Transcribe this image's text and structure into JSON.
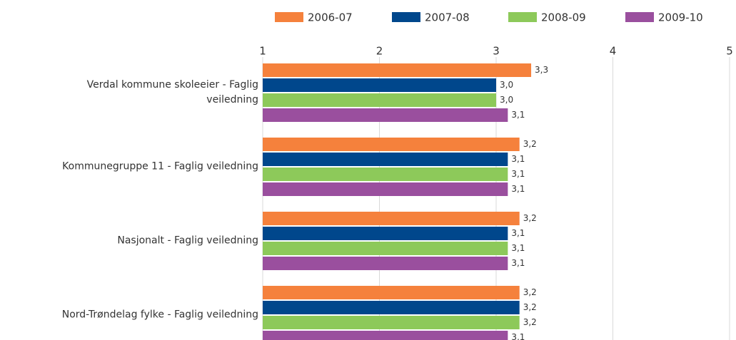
{
  "chart_data": {
    "type": "barh",
    "categories": [
      "Verdal kommune skoleeier - Faglig veiledning",
      "Kommunegruppe 11 - Faglig veiledning",
      "Nasjonalt - Faglig veiledning",
      "Nord-Trøndelag fylke - Faglig veiledning"
    ],
    "series": [
      {
        "name": "2006-07",
        "color": "#f5813c",
        "values": [
          3.3,
          3.2,
          3.2,
          3.2
        ],
        "value_labels": [
          "3,3",
          "3,2",
          "3,2",
          "3,2"
        ]
      },
      {
        "name": "2007-08",
        "color": "#00478c",
        "values": [
          3.0,
          3.1,
          3.1,
          3.2
        ],
        "value_labels": [
          "3,0",
          "3,1",
          "3,1",
          "3,2"
        ]
      },
      {
        "name": "2008-09",
        "color": "#8dc95a",
        "values": [
          3.0,
          3.1,
          3.1,
          3.2
        ],
        "value_labels": [
          "3,0",
          "3,1",
          "3,1",
          "3,2"
        ]
      },
      {
        "name": "2009-10",
        "color": "#9a4f9e",
        "values": [
          3.1,
          3.1,
          3.1,
          3.1
        ],
        "value_labels": [
          "3,1",
          "3,1",
          "3,1",
          "3,1"
        ]
      }
    ],
    "xlim": [
      1,
      5
    ],
    "xticks": [
      1,
      2,
      3,
      4,
      5
    ],
    "grid": true,
    "legend": "top"
  }
}
